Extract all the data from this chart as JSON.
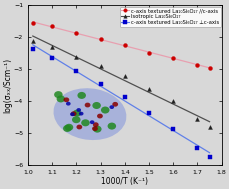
{
  "title": "",
  "xlabel": "1000/T (K⁻¹)",
  "ylabel": "log(σₓₓ/Scm⁻¹)",
  "xlim": [
    1.0,
    1.8
  ],
  "ylim": [
    -6.0,
    -1.0
  ],
  "xticks": [
    1.0,
    1.1,
    1.2,
    1.3,
    1.4,
    1.5,
    1.6,
    1.7,
    1.8
  ],
  "yticks": [
    -6,
    -5,
    -4,
    -3,
    -2,
    -1
  ],
  "series": [
    {
      "label": "c-axis textured La₁₀Si₆O₂₇ //c-axis",
      "line_color": "#e8a0b0",
      "marker_color": "#cc0000",
      "marker": "o",
      "x": [
        1.02,
        1.1,
        1.2,
        1.3,
        1.4,
        1.5,
        1.6,
        1.7,
        1.75
      ],
      "y": [
        -1.55,
        -1.65,
        -1.85,
        -2.05,
        -2.25,
        -2.5,
        -2.65,
        -2.85,
        -2.95
      ]
    },
    {
      "label": "Isotropic La₁₀Si₆O₂₇",
      "line_color": "#505050",
      "marker_color": "#202020",
      "marker": "^",
      "x": [
        1.02,
        1.1,
        1.2,
        1.3,
        1.4,
        1.5,
        1.6,
        1.7,
        1.75
      ],
      "y": [
        -2.1,
        -2.3,
        -2.6,
        -2.9,
        -3.2,
        -3.6,
        -4.0,
        -4.55,
        -4.8
      ]
    },
    {
      "label": "c-axis textured La₁₀Si₆O₂₇ ⊥c-axis",
      "line_color": "#6080e8",
      "marker_color": "#0000cc",
      "marker": "s",
      "x": [
        1.02,
        1.1,
        1.2,
        1.3,
        1.4,
        1.5,
        1.6,
        1.7,
        1.75
      ],
      "y": [
        -2.35,
        -2.65,
        -3.05,
        -3.45,
        -3.85,
        -4.35,
        -4.85,
        -5.45,
        -5.75
      ]
    }
  ],
  "legend_fontsize": 3.8,
  "axis_fontsize": 5.5,
  "tick_fontsize": 4.5,
  "background_color": "#d8d8d8",
  "plot_bg_color": "#d8d8d8",
  "grid": false
}
